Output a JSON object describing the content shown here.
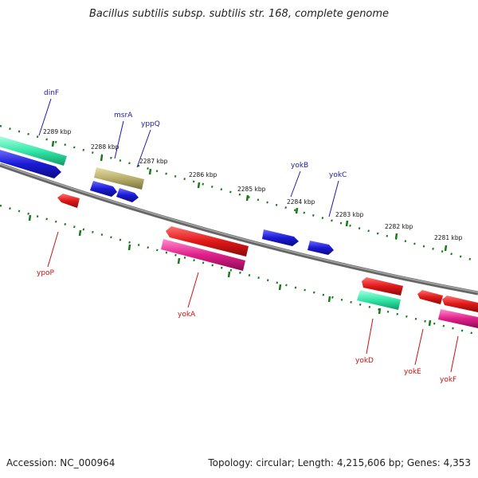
{
  "title": "Bacillus subtilis subsp. subtilis str. 168, complete genome",
  "accession": "Accession: NC_000964",
  "stats": "Topology: circular; Length: 4,215,606 bp; Genes: 4,353",
  "ruler_labels": [
    "2289 kbp",
    "2288 kbp",
    "2287 kbp",
    "2286 kbp",
    "2285 kbp",
    "2284 kbp",
    "2283 kbp",
    "2282 kbp",
    "2281 kbp"
  ],
  "genes_top": [
    "dinF",
    "msrA",
    "yppQ",
    "yokB",
    "yokC"
  ],
  "genes_bottom": [
    "ypoP",
    "yokA",
    "yokD",
    "yokE",
    "yokF"
  ],
  "colors": {
    "forward_cds": "#1a1ad6",
    "reverse_cds": "#e01818",
    "teal_feature": "#33e8a8",
    "olive_feature": "#b8ae6a",
    "pink_feature": "#e0208a",
    "backbone": "#777777",
    "tick": "#1a7a1a",
    "top_label": "#1a1aa6",
    "bottom_label": "#cc1111"
  }
}
